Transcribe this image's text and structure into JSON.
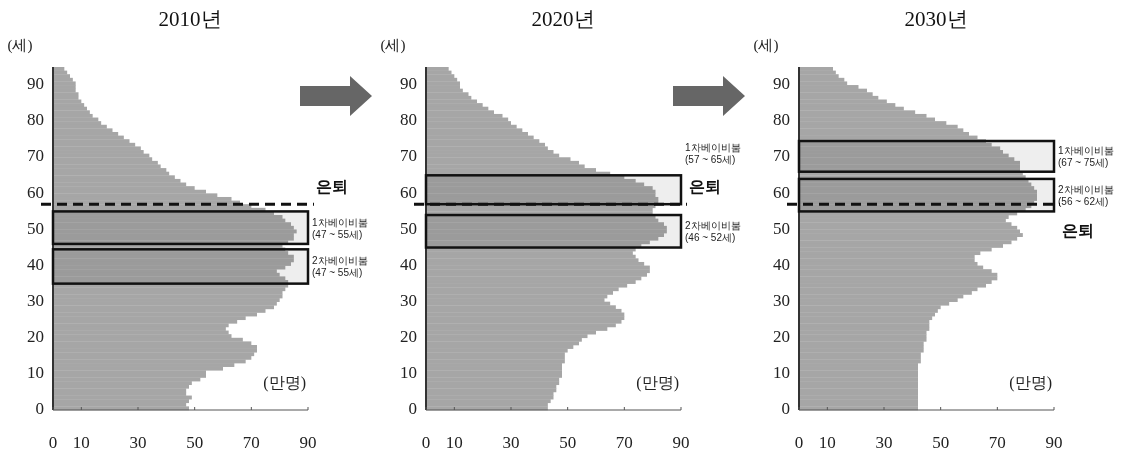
{
  "chart_data": [
    {
      "type": "bar",
      "orientation": "horizontal",
      "title": "2010년",
      "ylabel": "(세)",
      "xlabel": "(만명)",
      "color": "#a6a6a6",
      "xlim": [
        0,
        90
      ],
      "xticks": [
        0,
        10,
        30,
        50,
        70,
        90
      ],
      "ylim": [
        -0.5,
        94.5
      ],
      "yticks": [
        0,
        10,
        20,
        30,
        40,
        50,
        60,
        70,
        80,
        90
      ],
      "x": [
        94,
        93,
        92,
        91,
        90,
        89,
        88,
        87,
        86,
        85,
        84,
        83,
        82,
        81,
        80,
        79,
        78,
        77,
        76,
        75,
        74,
        73,
        72,
        71,
        70,
        69,
        68,
        67,
        66,
        65,
        64,
        63,
        62,
        61,
        60,
        59,
        58,
        57,
        56,
        55,
        54,
        53,
        52,
        51,
        50,
        49,
        48,
        47,
        46,
        45,
        44,
        43,
        42,
        41,
        40,
        39,
        38,
        37,
        36,
        35,
        34,
        33,
        32,
        31,
        30,
        29,
        28,
        27,
        26,
        25,
        24,
        23,
        22,
        21,
        20,
        19,
        18,
        17,
        16,
        15,
        14,
        13,
        12,
        11,
        10,
        9,
        8,
        7,
        6,
        5,
        4,
        3,
        2,
        1,
        0
      ],
      "values": [
        4,
        5,
        6,
        7,
        8,
        8,
        8,
        9,
        9,
        10,
        11,
        12,
        13,
        14,
        16,
        17,
        19,
        21,
        23,
        25,
        27,
        29,
        31,
        32,
        34,
        35,
        37,
        38,
        40,
        41,
        43,
        45,
        47,
        50,
        54,
        58,
        63,
        66,
        70,
        75,
        78,
        81,
        82,
        84,
        85,
        86,
        85,
        85,
        83,
        81,
        82,
        83,
        85,
        85,
        84,
        82,
        79,
        80,
        82,
        83,
        83,
        82,
        81,
        81,
        80,
        79,
        78,
        75,
        72,
        68,
        65,
        62,
        61,
        62,
        63,
        67,
        70,
        72,
        72,
        71,
        70,
        68,
        64,
        60,
        54,
        54,
        52,
        49,
        48,
        47,
        47,
        49,
        48,
        47,
        48
      ],
      "ref_lines": [
        {
          "axis": "y",
          "value": 56.5,
          "label": "은퇴"
        }
      ],
      "bands": [
        {
          "axis": "y",
          "from": 45.5,
          "to": 54.5,
          "label": "1차베이비붐\n(47 ~ 55세)"
        },
        {
          "axis": "y",
          "from": 34.5,
          "to": 44,
          "label": "2차베이비붐\n(47 ~ 55세)"
        }
      ]
    },
    {
      "type": "bar",
      "orientation": "horizontal",
      "title": "2020년",
      "ylabel": "(세)",
      "xlabel": "(만명)",
      "color": "#a6a6a6",
      "xlim": [
        0,
        90
      ],
      "xticks": [
        0,
        10,
        30,
        50,
        70,
        90
      ],
      "ylim": [
        -0.5,
        94.5
      ],
      "yticks": [
        0,
        10,
        20,
        30,
        40,
        50,
        60,
        70,
        80,
        90
      ],
      "x": [
        94,
        93,
        92,
        91,
        90,
        89,
        88,
        87,
        86,
        85,
        84,
        83,
        82,
        81,
        80,
        79,
        78,
        77,
        76,
        75,
        74,
        73,
        72,
        71,
        70,
        69,
        68,
        67,
        66,
        65,
        64,
        63,
        62,
        61,
        60,
        59,
        58,
        57,
        56,
        55,
        54,
        53,
        52,
        51,
        50,
        49,
        48,
        47,
        46,
        45,
        44,
        43,
        42,
        41,
        40,
        39,
        38,
        37,
        36,
        35,
        34,
        33,
        32,
        31,
        30,
        29,
        28,
        27,
        26,
        25,
        24,
        23,
        22,
        21,
        20,
        19,
        18,
        17,
        16,
        15,
        14,
        13,
        12,
        11,
        10,
        9,
        8,
        7,
        6,
        5,
        4,
        3,
        2,
        1,
        0
      ],
      "values": [
        8,
        9,
        10,
        11,
        12,
        12,
        13,
        15,
        16,
        18,
        20,
        22,
        24,
        27,
        29,
        30,
        32,
        34,
        36,
        38,
        40,
        42,
        43,
        45,
        47,
        51,
        54,
        56,
        60,
        65,
        70,
        74,
        77,
        80,
        81,
        81,
        82,
        82,
        81,
        80,
        80,
        81,
        82,
        84,
        85,
        85,
        84,
        82,
        79,
        76,
        74,
        73,
        74,
        75,
        77,
        79,
        79,
        78,
        76,
        74,
        71,
        68,
        66,
        64,
        63,
        65,
        67,
        69,
        70,
        70,
        69,
        67,
        64,
        60,
        57,
        55,
        54,
        52,
        50,
        49,
        49,
        49,
        48,
        48,
        48,
        48,
        47,
        47,
        46,
        46,
        45,
        45,
        44,
        43,
        43
      ],
      "ref_lines": [
        {
          "axis": "y",
          "value": 56.5,
          "label": "은퇴"
        }
      ],
      "bands": [
        {
          "axis": "y",
          "from": 56.5,
          "to": 64.5,
          "label": "1차베이비붐\n(57 ~ 65세)"
        },
        {
          "axis": "y",
          "from": 44.5,
          "to": 53.5,
          "label": "2차베이비붐\n(46 ~ 52세)"
        }
      ]
    },
    {
      "type": "bar",
      "orientation": "horizontal",
      "title": "2030년",
      "ylabel": "(세)",
      "xlabel": "(만명)",
      "color": "#a6a6a6",
      "xlim": [
        0,
        90
      ],
      "xticks": [
        0,
        10,
        30,
        50,
        70,
        90
      ],
      "ylim": [
        -0.5,
        94.5
      ],
      "yticks": [
        0,
        10,
        20,
        30,
        40,
        50,
        60,
        70,
        80,
        90
      ],
      "x": [
        94,
        93,
        92,
        91,
        90,
        89,
        88,
        87,
        86,
        85,
        84,
        83,
        82,
        81,
        80,
        79,
        78,
        77,
        76,
        75,
        74,
        73,
        72,
        71,
        70,
        69,
        68,
        67,
        66,
        65,
        64,
        63,
        62,
        61,
        60,
        59,
        58,
        57,
        56,
        55,
        54,
        53,
        52,
        51,
        50,
        49,
        48,
        47,
        46,
        45,
        44,
        43,
        42,
        41,
        40,
        39,
        38,
        37,
        36,
        35,
        34,
        33,
        32,
        31,
        30,
        29,
        28,
        27,
        26,
        25,
        24,
        23,
        22,
        21,
        20,
        19,
        18,
        17,
        16,
        15,
        14,
        13,
        12,
        11,
        10,
        9,
        8,
        7,
        6,
        5,
        4,
        3,
        2,
        1,
        0
      ],
      "values": [
        12,
        13,
        14,
        16,
        17,
        21,
        24,
        26,
        28,
        31,
        34,
        37,
        41,
        45,
        48,
        52,
        56,
        58,
        60,
        63,
        66,
        68,
        71,
        72,
        74,
        76,
        78,
        78,
        78,
        79,
        80,
        81,
        82,
        83,
        84,
        84,
        84,
        83,
        82,
        80,
        77,
        74,
        73,
        75,
        77,
        78,
        79,
        77,
        75,
        72,
        68,
        64,
        62,
        62,
        63,
        65,
        68,
        70,
        70,
        68,
        66,
        63,
        61,
        58,
        56,
        53,
        50,
        49,
        48,
        47,
        46,
        46,
        46,
        45,
        45,
        45,
        44,
        44,
        44,
        43,
        43,
        43,
        42,
        42,
        42,
        42,
        42,
        42,
        42,
        42,
        42,
        42,
        42,
        42,
        42
      ],
      "ref_lines": [
        {
          "axis": "y",
          "value": 56.5,
          "label": "은퇴"
        }
      ],
      "bands": [
        {
          "axis": "y",
          "from": 65.5,
          "to": 74,
          "label": "1차베이비붐\n(67 ~ 75세)"
        },
        {
          "axis": "y",
          "from": 54.5,
          "to": 63.5,
          "label": "2차베이비붐\n(56 ~ 62세)"
        }
      ]
    }
  ]
}
